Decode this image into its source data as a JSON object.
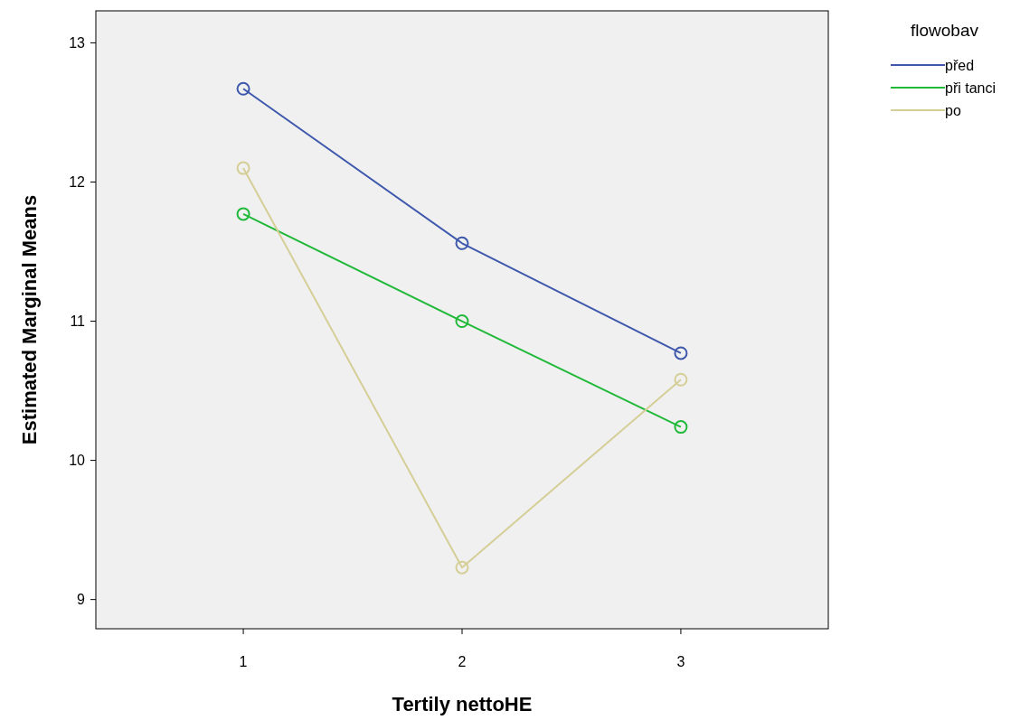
{
  "chart_data": {
    "type": "line",
    "xlabel": "Tertily nettoHE",
    "ylabel": "Estimated Marginal Means",
    "legend_title": "flowobav",
    "categories": [
      "1",
      "2",
      "3"
    ],
    "series": [
      {
        "name": "před",
        "color": "#3e58ac",
        "values": [
          12.67,
          11.56,
          10.77
        ]
      },
      {
        "name": "při tanci",
        "color": "#21b93a",
        "values": [
          11.77,
          11.0,
          10.24
        ]
      },
      {
        "name": "po",
        "color": "#d5ce96",
        "values": [
          12.1,
          9.23,
          10.58
        ]
      }
    ],
    "ylim": [
      8.79,
      13.23
    ],
    "yticks": [
      9,
      10,
      11,
      12,
      13
    ],
    "grid": false,
    "legend": "top right",
    "marker": "circle",
    "line_style": "solid"
  }
}
